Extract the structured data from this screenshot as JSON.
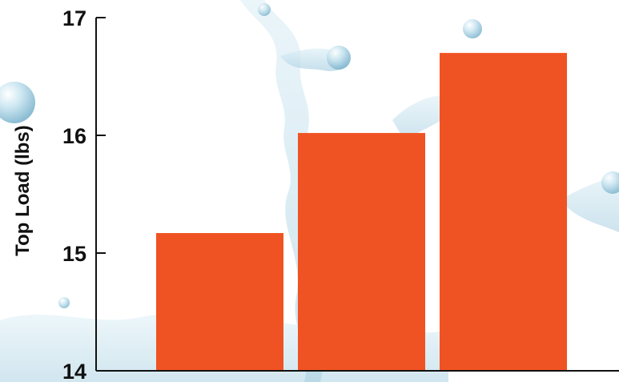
{
  "chart_data": {
    "type": "bar",
    "title": "",
    "xlabel": "",
    "ylabel": "Top Load (lbs)",
    "ylim": [
      14,
      17
    ],
    "yticks": [
      14,
      15,
      16,
      17
    ],
    "ytick_labels": [
      "14",
      "15",
      "16",
      "17"
    ],
    "categories": [
      "",
      "",
      ""
    ],
    "values": [
      15.17,
      16.02,
      16.7
    ],
    "grid": false,
    "legend": "none",
    "bar_color": "#f05323",
    "axis_color": "#111111",
    "background": "water-splash-illustration"
  }
}
